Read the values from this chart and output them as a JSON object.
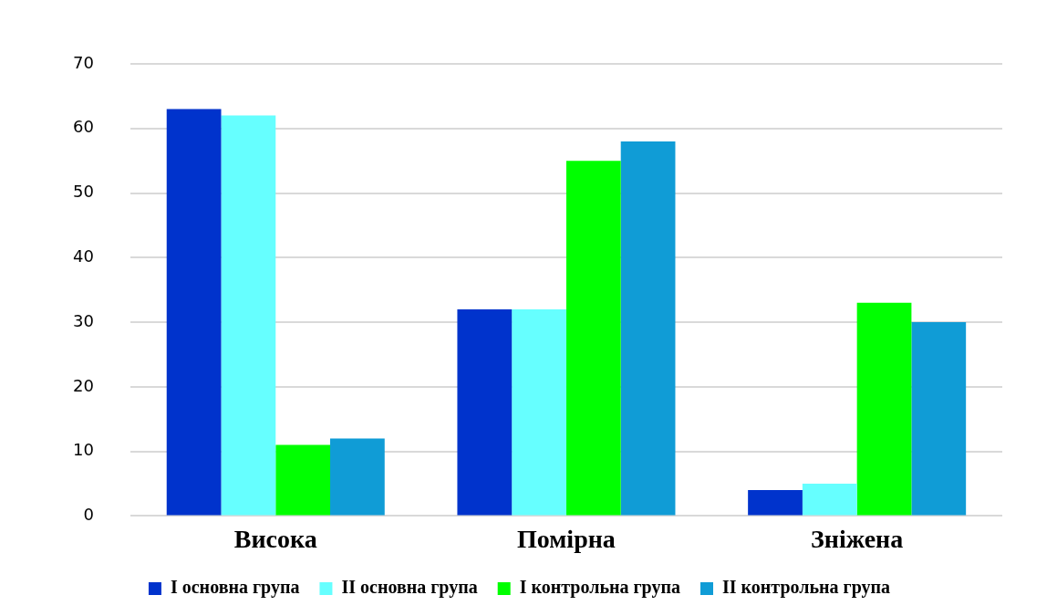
{
  "chart_data": {
    "type": "bar",
    "categories": [
      "Висока",
      "Помірна",
      "Зніжена"
    ],
    "series": [
      {
        "name": "I основна група",
        "color": "#0033cc",
        "values": [
          63,
          32,
          4
        ]
      },
      {
        "name": "II основна група",
        "color": "#66ffff",
        "values": [
          62,
          32,
          5
        ]
      },
      {
        "name": "I контрольна група",
        "color": "#00ff00",
        "values": [
          11,
          55,
          33
        ]
      },
      {
        "name": "II контрольна група",
        "color": "#109cd6",
        "values": [
          12,
          58,
          30
        ]
      }
    ],
    "ylim": [
      0,
      70
    ],
    "yticks": [
      0,
      10,
      20,
      30,
      40,
      50,
      60,
      70
    ],
    "grid": "y",
    "legend": "bottom"
  }
}
